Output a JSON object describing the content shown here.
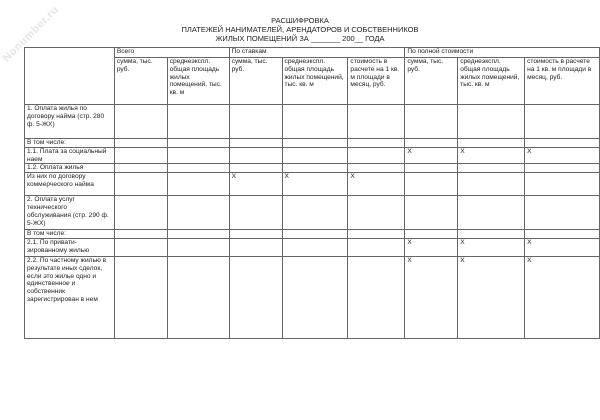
{
  "watermark": "Nonumber.ru",
  "title": [
    "РАСШИФРОВКА",
    "ПЛАТЕЖЕЙ НАНИМАТЕЛЕЙ, АРЕНДАТОРОВ И СОБСТВЕННИКОВ",
    "ЖИЛЫХ ПОМЕЩЕНИЙ ЗА _______ 200__ ГОДА"
  ],
  "groups": [
    "Всего",
    "По ставкам",
    "По полной стоимости"
  ],
  "columns": [
    "сумма, тыс. руб.",
    "среднеэкспл. общая площадь жилых помещений, тыс. кв. м",
    "сумма, тыс. руб.",
    "среднеэкспл. общая площадь жилых помещений, тыс. кв. м",
    "стоимость в расчете на 1 кв. м площади в месяц, руб.",
    "сумма, тыс. руб.",
    "среднеэкспл. общая площадь жилых помещений, тыс. кв. м",
    "стоимость в расчете на 1 кв. м площади в месяц, руб."
  ],
  "rows": [
    {
      "label": "1. Оплата жилья по договору найма (стр. 280 ф. 5-ЖХ)",
      "cells": [
        "",
        "",
        "",
        "",
        "",
        "",
        "",
        ""
      ]
    },
    {
      "label": "В том числе:",
      "cells": [
        "",
        "",
        "",
        "",
        "",
        "",
        "",
        ""
      ]
    },
    {
      "label": "1.1. Плата за социальный наем",
      "cells": [
        "",
        "",
        "",
        "",
        "",
        "X",
        "X",
        "X"
      ]
    },
    {
      "label": "1.2. Оплата жилья",
      "cells": [
        "",
        "",
        "",
        "",
        "",
        "",
        "",
        ""
      ]
    },
    {
      "label": "Из них по договору коммерческого найма",
      "cells": [
        "",
        "",
        "X",
        "X",
        "X",
        "",
        "",
        ""
      ]
    },
    {
      "label": "2. Оплата услуг технического обслуживания (стр. 290 ф. 5-ЖХ)",
      "cells": [
        "",
        "",
        "",
        "",
        "",
        "",
        "",
        ""
      ]
    },
    {
      "label": "В том числе:",
      "cells": [
        "",
        "",
        "",
        "",
        "",
        "",
        "",
        ""
      ]
    },
    {
      "label": "2.1. По привати-зированному жилью",
      "cells": [
        "",
        "",
        "",
        "",
        "",
        "X",
        "X",
        "X"
      ]
    },
    {
      "label": "2.2. По частному жилью в результате иных сделок, если это жилье одно и единственное и собственник зарегистрирован в нем",
      "cells": [
        "",
        "",
        "",
        "",
        "",
        "X",
        "X",
        "X"
      ]
    }
  ]
}
